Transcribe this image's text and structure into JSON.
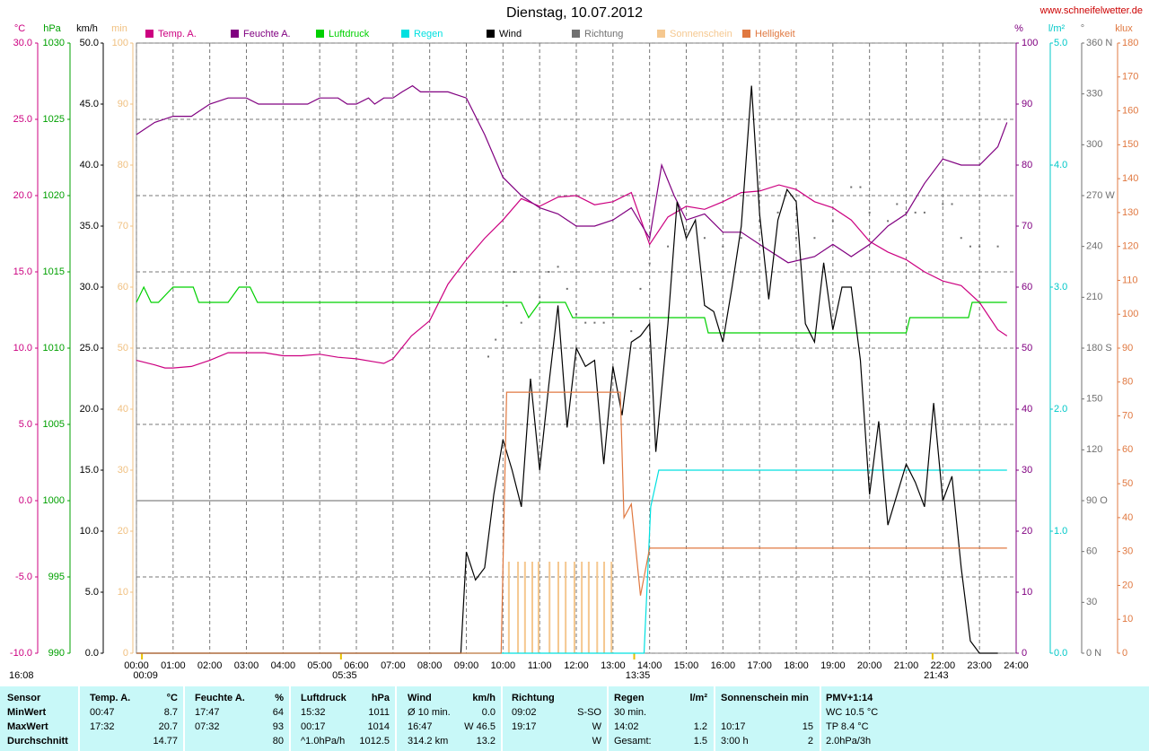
{
  "chart_data": {
    "type": "line",
    "title": "Dienstag, 10.07.2012",
    "source": "www.schneifelwetter.de",
    "xlim": [
      0,
      24
    ],
    "xticks": [
      {
        "value": 0,
        "label": "00:00"
      },
      {
        "value": 1,
        "label": "01:00"
      },
      {
        "value": 2,
        "label": "02:00"
      },
      {
        "value": 3,
        "label": "03:00"
      },
      {
        "value": 4,
        "label": "04:00"
      },
      {
        "value": 5,
        "label": "05:00"
      },
      {
        "value": 6,
        "label": "06:00"
      },
      {
        "value": 7,
        "label": "07:00"
      },
      {
        "value": 8,
        "label": "08:00"
      },
      {
        "value": 9,
        "label": "09:00"
      },
      {
        "value": 10,
        "label": "10:00"
      },
      {
        "value": 11,
        "label": "11:00"
      },
      {
        "value": 12,
        "label": "12:00"
      },
      {
        "value": 13,
        "label": "13:00"
      },
      {
        "value": 14,
        "label": "14:00"
      },
      {
        "value": 15,
        "label": "15:00"
      },
      {
        "value": 16,
        "label": "16:00"
      },
      {
        "value": 17,
        "label": "17:00"
      },
      {
        "value": 18,
        "label": "18:00"
      },
      {
        "value": 19,
        "label": "19:00"
      },
      {
        "value": 20,
        "label": "20:00"
      },
      {
        "value": 21,
        "label": "21:00"
      },
      {
        "value": 22,
        "label": "22:00"
      },
      {
        "value": 23,
        "label": "23:00"
      },
      {
        "value": 24,
        "label": "24:00"
      }
    ],
    "x_markers": [
      {
        "value": 0.15,
        "label": "00:09"
      },
      {
        "value": 5.58,
        "label": "05:35"
      },
      {
        "value": 13.58,
        "label": "13:35"
      },
      {
        "value": 21.72,
        "label": "21:43"
      }
    ],
    "day_length": "16:08",
    "y_axes": {
      "temp": {
        "label": "°C",
        "color": "#cc0080",
        "grid": true,
        "lim": [
          -10,
          30
        ],
        "ticks": [
          {
            "value": -10,
            "label": "-10.0"
          },
          {
            "value": -5,
            "label": "-5.0"
          },
          {
            "value": 0,
            "label": "0.0"
          },
          {
            "value": 5,
            "label": "5.0"
          },
          {
            "value": 10,
            "label": "10.0"
          },
          {
            "value": 15,
            "label": "15.0"
          },
          {
            "value": 20,
            "label": "20.0"
          },
          {
            "value": 25,
            "label": "25.0"
          },
          {
            "value": 30,
            "label": "30.0"
          }
        ]
      },
      "pressure": {
        "label": "hPa",
        "color": "#00a000",
        "lim": [
          990,
          1030
        ],
        "ticks": [
          990,
          995,
          1000,
          1005,
          1010,
          1015,
          1020,
          1025,
          1030
        ]
      },
      "wind": {
        "label": "km/h",
        "color": "#000000",
        "lim": [
          0,
          50
        ],
        "ticks": [
          {
            "value": 0,
            "label": "0.0"
          },
          {
            "value": 5,
            "label": "5.0"
          },
          {
            "value": 10,
            "label": "10.0"
          },
          {
            "value": 15,
            "label": "15.0"
          },
          {
            "value": 20,
            "label": "20.0"
          },
          {
            "value": 25,
            "label": "25.0"
          },
          {
            "value": 30,
            "label": "30.0"
          },
          {
            "value": 35,
            "label": "35.0"
          },
          {
            "value": 40,
            "label": "40.0"
          },
          {
            "value": 45,
            "label": "45.0"
          },
          {
            "value": 50,
            "label": "50.0"
          }
        ]
      },
      "sun": {
        "label": "min",
        "color": "#f0c080",
        "lim": [
          0,
          100
        ],
        "ticks": [
          0,
          10,
          20,
          30,
          40,
          50,
          60,
          70,
          80,
          90,
          100
        ]
      },
      "humidity": {
        "label": "%",
        "color": "#800080",
        "lim": [
          0,
          100
        ],
        "ticks": [
          0,
          10,
          20,
          30,
          40,
          50,
          60,
          70,
          80,
          90,
          100
        ]
      },
      "rain": {
        "label": "l/m²",
        "color": "#00c8c8",
        "lim": [
          0,
          5
        ],
        "ticks": [
          {
            "value": 0,
            "label": "0.0"
          },
          {
            "value": 1,
            "label": "1.0"
          },
          {
            "value": 2,
            "label": "2.0"
          },
          {
            "value": 3,
            "label": "3.0"
          },
          {
            "value": 4,
            "label": "4.0"
          },
          {
            "value": 5,
            "label": "5.0"
          }
        ]
      },
      "direction": {
        "label": "°",
        "color": "#707070",
        "lim": [
          0,
          360
        ],
        "ticks": [
          {
            "value": 0,
            "label": "0 N"
          },
          30,
          60,
          {
            "value": 90,
            "label": "90 O"
          },
          120,
          150,
          {
            "value": 180,
            "label": "180 S"
          },
          210,
          240,
          {
            "value": 270,
            "label": "270 W"
          },
          300,
          330,
          {
            "value": 360,
            "label": "360 N"
          }
        ]
      },
      "bright": {
        "label": "klux",
        "color": "#e07840",
        "lim": [
          0,
          180
        ],
        "ticks": [
          0,
          10,
          20,
          30,
          40,
          50,
          60,
          70,
          80,
          90,
          100,
          110,
          120,
          130,
          140,
          150,
          160,
          170,
          180
        ]
      }
    },
    "series": [
      {
        "name": "Temp. A.",
        "type": "line",
        "axis": "temp",
        "color": "#cc0080",
        "x": [
          0,
          0.5,
          0.78,
          1,
          1.5,
          2,
          2.5,
          3,
          3.5,
          4,
          4.5,
          5,
          5.5,
          6,
          6.5,
          6.75,
          7,
          7.5,
          8,
          8.5,
          9,
          9.5,
          10,
          10.5,
          11,
          11.5,
          12,
          12.5,
          13,
          13.5,
          14,
          14.5,
          15,
          15.5,
          16,
          16.5,
          17,
          17.53,
          18,
          18.5,
          19,
          19.5,
          20,
          20.5,
          21,
          21.5,
          22,
          22.5,
          23,
          23.5,
          23.75
        ],
        "values": [
          9.2,
          8.9,
          8.7,
          8.7,
          8.8,
          9.2,
          9.7,
          9.7,
          9.7,
          9.5,
          9.5,
          9.6,
          9.4,
          9.3,
          9.1,
          9.0,
          9.3,
          10.8,
          11.8,
          14.2,
          15.8,
          17.2,
          18.4,
          19.8,
          19.3,
          19.9,
          20.0,
          19.4,
          19.6,
          20.2,
          16.8,
          18.6,
          19.3,
          19.1,
          19.6,
          20.2,
          20.3,
          20.7,
          20.4,
          19.6,
          19.2,
          18.4,
          17.0,
          16.3,
          15.8,
          15.0,
          14.4,
          14.1,
          13.0,
          11.2,
          10.8
        ]
      },
      {
        "name": "Feuchte A.",
        "type": "line",
        "axis": "humidity",
        "color": "#800080",
        "x": [
          0,
          0.5,
          1,
          1.5,
          2,
          2.5,
          3,
          3.33,
          4,
          4.67,
          5,
          5.5,
          5.75,
          6,
          6.33,
          6.5,
          6.75,
          7,
          7.25,
          7.53,
          7.75,
          8,
          8.5,
          9,
          9.5,
          10,
          10.5,
          11,
          11.5,
          12,
          12.5,
          13,
          13.5,
          14,
          14.33,
          14.67,
          15,
          15.5,
          16,
          16.5,
          17,
          17.78,
          18.5,
          19,
          19.5,
          20,
          20.5,
          21,
          21.5,
          22,
          22.5,
          23,
          23.5,
          23.75
        ],
        "values": [
          85,
          87,
          88,
          88,
          90,
          91,
          91,
          90,
          90,
          90,
          91,
          91,
          90,
          90,
          91,
          90,
          91,
          91,
          92,
          93,
          92,
          92,
          92,
          91,
          85,
          78,
          75,
          73,
          72,
          70,
          70,
          71,
          73,
          68,
          80,
          75,
          71,
          72,
          69,
          69,
          67,
          64,
          65,
          67,
          65,
          67,
          70,
          72,
          77,
          81,
          80,
          80,
          83,
          87
        ]
      },
      {
        "name": "Luftdruck",
        "type": "line",
        "axis": "pressure",
        "color": "#00d000",
        "x": [
          0,
          0.2,
          0.4,
          0.6,
          1,
          1.55,
          1.7,
          2.5,
          2.8,
          3.1,
          3.3,
          10.5,
          10.7,
          11,
          11.7,
          11.9,
          12,
          14,
          15.5,
          15.6,
          21,
          21.1,
          22.7,
          22.8,
          23.75
        ],
        "values": [
          1013,
          1014,
          1013,
          1013,
          1014,
          1014,
          1013,
          1013,
          1014,
          1014,
          1013,
          1013,
          1012,
          1013,
          1013,
          1012,
          1012,
          1012,
          1012,
          1011,
          1011,
          1012,
          1012,
          1013,
          1013
        ]
      },
      {
        "name": "Regen",
        "type": "line",
        "axis": "rain",
        "color": "#00e0e0",
        "x": [
          0,
          13.85,
          14.03,
          14.25,
          23.75
        ],
        "values": [
          0,
          0,
          1.2,
          1.5,
          1.5
        ]
      },
      {
        "name": "Wind",
        "type": "line",
        "axis": "wind",
        "color": "#000000",
        "x": [
          0,
          8.85,
          9.0,
          9.25,
          9.5,
          9.75,
          10.0,
          10.25,
          10.5,
          10.75,
          11.0,
          11.25,
          11.5,
          11.75,
          12.0,
          12.25,
          12.5,
          12.75,
          13.0,
          13.25,
          13.5,
          13.75,
          14.0,
          14.17,
          14.5,
          14.75,
          15.0,
          15.25,
          15.5,
          15.75,
          16.0,
          16.25,
          16.5,
          16.78,
          17.0,
          17.25,
          17.5,
          17.75,
          18.0,
          18.25,
          18.5,
          18.75,
          19.0,
          19.25,
          19.5,
          19.75,
          20.0,
          20.25,
          20.5,
          20.75,
          21.0,
          21.25,
          21.5,
          21.75,
          22.0,
          22.25,
          22.5,
          22.75,
          23.0,
          23.5
        ],
        "values": [
          0,
          0,
          8.3,
          6,
          7,
          13,
          17.5,
          15,
          12,
          22.5,
          15,
          22,
          28.5,
          18.5,
          25,
          23.5,
          24,
          15.5,
          23.5,
          19.5,
          25.5,
          26,
          27,
          16.5,
          27,
          37,
          34,
          35.5,
          28.5,
          28,
          25.5,
          30,
          35,
          46.5,
          36,
          29,
          35.5,
          38,
          37,
          27,
          25.5,
          32,
          26.5,
          30,
          30,
          24,
          13,
          19,
          10.5,
          13,
          15.5,
          14,
          12,
          20.5,
          12.5,
          14.5,
          7,
          1,
          0,
          0
        ]
      },
      {
        "name": "Richtung",
        "type": "scatter",
        "axis": "direction",
        "color": "#707070",
        "x": [
          9.6,
          9.8,
          10.1,
          10.3,
          10.5,
          11.0,
          11.25,
          11.5,
          11.75,
          12.0,
          12.25,
          12.5,
          12.75,
          13.0,
          13.5,
          13.75,
          14.0,
          14.5,
          15.0,
          15.5,
          16.0,
          16.5,
          17.0,
          17.5,
          18.0,
          18.5,
          19.0,
          19.5,
          19.75,
          20.0,
          20.5,
          20.75,
          21.0,
          21.25,
          21.5,
          22.0,
          22.25,
          22.5,
          22.75,
          23.0,
          23.5
        ],
        "values": [
          175,
          185,
          205,
          225,
          195,
          210,
          225,
          228,
          215,
          200,
          195,
          195,
          195,
          200,
          190,
          215,
          230,
          240,
          250,
          245,
          240,
          245,
          255,
          260,
          245,
          245,
          255,
          275,
          275,
          260,
          255,
          265,
          260,
          260,
          260,
          265,
          265,
          245,
          240,
          240,
          240
        ]
      },
      {
        "name": "Sonnenschein",
        "type": "bar",
        "axis": "sun",
        "color": "#f5c890",
        "x": [
          10.16,
          10.41,
          10.6,
          10.8,
          10.97,
          11.27,
          11.51,
          11.71,
          11.95,
          12.15,
          12.34,
          12.57,
          12.76,
          12.96
        ],
        "values": [
          15,
          15,
          15,
          15,
          15,
          15,
          15,
          15,
          15,
          15,
          15,
          15,
          15,
          15
        ]
      },
      {
        "name": "Helligkeit",
        "type": "line",
        "axis": "bright",
        "color": "#e07840",
        "x": [
          0,
          9.95,
          10.1,
          13.2,
          13.3,
          13.5,
          13.75,
          14.0,
          23.75
        ],
        "values": [
          0,
          0,
          77,
          77,
          40,
          44,
          17,
          31,
          31
        ]
      }
    ]
  },
  "table": {
    "rows": [
      [
        "Sensor",
        "Temp. A.",
        "°C",
        "Feuchte A.",
        "%",
        "Luftdruck",
        "hPa",
        "Wind",
        "km/h",
        "Richtung",
        null,
        "Regen",
        "l/m²",
        "Sonnenschein min",
        null,
        "PMV+1:14"
      ],
      [
        "MinWert",
        "00:47",
        "8.7",
        "17:47",
        "64",
        "15:32",
        "1011",
        "Ø 10 min.",
        "0.0",
        "09:02",
        "S-SO",
        "30 min.",
        null,
        null,
        null,
        "WC 10.5 °C"
      ],
      [
        "MaxWert",
        "17:32",
        "20.7",
        "07:32",
        "93",
        "00:17",
        "1014",
        "16:47",
        "W 46.5",
        "19:17",
        "W",
        "14:02",
        "1.2",
        "10:17",
        "15",
        "TP 8.4 °C"
      ],
      [
        "Durchschnitt",
        null,
        "14.77",
        null,
        "80",
        "^1.0hPa/h",
        "1012.5",
        "314.2 km",
        "13.2",
        null,
        "W",
        "Gesamt:",
        "1.5",
        "3:00 h",
        "2",
        "2.0hPa/3h"
      ]
    ]
  }
}
